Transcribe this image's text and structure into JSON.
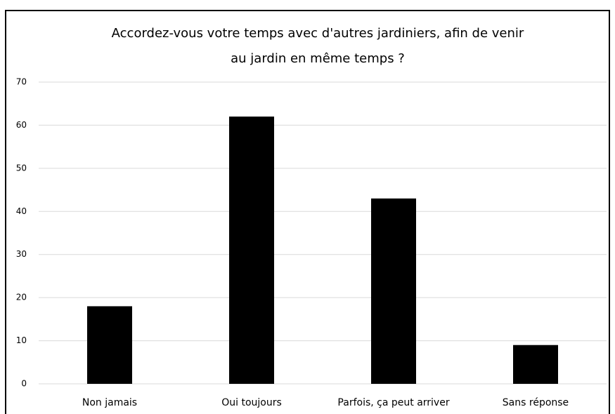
{
  "chart_data": {
    "type": "bar",
    "title": [
      "Accordez-vous votre temps avec d'autres jardiniers, afin de venir",
      "au jardin en même temps ?"
    ],
    "categories": [
      "Non jamais",
      "Oui toujours",
      "Parfois, ça peut arriver",
      "Sans réponse"
    ],
    "values": [
      18,
      62,
      43,
      9
    ],
    "color": "#000000",
    "ylim": [
      0,
      70
    ],
    "yticks": [
      0,
      10,
      20,
      30,
      40,
      50,
      60,
      70
    ],
    "grid": true
  }
}
